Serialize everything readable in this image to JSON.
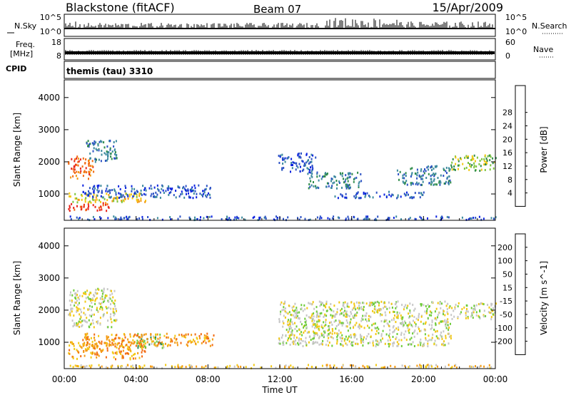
{
  "header": {
    "station": "Blackstone (fitACF)",
    "beam": "Beam 07",
    "date": "15/Apr/2009"
  },
  "top_panels": {
    "nsky_label": "N.Sky",
    "nsearch_label": "N.Search",
    "nsky_ticks": [
      "10^5",
      "10^0"
    ],
    "nsearch_ticks": [
      "10^5",
      "10^0"
    ],
    "freq_label_1": "Freq.",
    "freq_label_2": "[MHz]",
    "freq_ticks": [
      "18",
      "8"
    ],
    "nave_label": "Nave",
    "nave_ticks": [
      "60",
      "0"
    ],
    "cpid_label": "CPID",
    "cpid_value": "themis (tau) 3310"
  },
  "chart_data": [
    {
      "type": "heatmap",
      "title": "",
      "xlabel": "Time UT",
      "ylabel": "Slant Range [km]",
      "x_ticks": [
        "00:00",
        "04:00",
        "08:00",
        "12:00",
        "16:00",
        "20:00",
        "00:00"
      ],
      "y_ticks": [
        "1000",
        "2000",
        "3000",
        "4000"
      ],
      "xlim_hours": [
        0,
        24
      ],
      "ylim_km": [
        180,
        4550
      ],
      "colorbar": {
        "label": "Power [dB]",
        "ticks": [
          "4",
          "8",
          "12",
          "16",
          "20",
          "24",
          "28"
        ],
        "colors": [
          "#0b22e0",
          "#2c52c4",
          "#3c8a9e",
          "#2e8c4a",
          "#7cc43a",
          "#f2c812",
          "#f49a12",
          "#f26a12",
          "#e8241a"
        ]
      },
      "regions": [
        {
          "t0": 0.2,
          "t1": 1.6,
          "r0": 1500,
          "r1": 2200,
          "level": 7
        },
        {
          "t0": 1.2,
          "t1": 2.9,
          "r0": 2000,
          "r1": 2700,
          "level": 2
        },
        {
          "t0": 0.2,
          "t1": 2.5,
          "r0": 500,
          "r1": 750,
          "level": 8
        },
        {
          "t0": 0.2,
          "t1": 4.5,
          "r0": 750,
          "r1": 1050,
          "level": 5
        },
        {
          "t0": 1.0,
          "t1": 8.3,
          "r0": 900,
          "r1": 1300,
          "level": 1
        },
        {
          "t0": 0.2,
          "t1": 24.0,
          "r0": 220,
          "r1": 330,
          "level": 1
        },
        {
          "t0": 11.9,
          "t1": 14.0,
          "r0": 1700,
          "r1": 2300,
          "level": 1
        },
        {
          "t0": 13.5,
          "t1": 16.5,
          "r0": 1200,
          "r1": 1700,
          "level": 2
        },
        {
          "t0": 15.0,
          "t1": 20.0,
          "r0": 900,
          "r1": 1100,
          "level": 1
        },
        {
          "t0": 18.5,
          "t1": 21.5,
          "r0": 1300,
          "r1": 1900,
          "level": 2
        },
        {
          "t0": 21.5,
          "t1": 24.0,
          "r0": 1750,
          "r1": 2250,
          "level": 4
        }
      ]
    },
    {
      "type": "heatmap",
      "title": "",
      "xlabel": "Time UT",
      "ylabel": "Slant Range [km]",
      "x_ticks": [
        "00:00",
        "04:00",
        "08:00",
        "12:00",
        "16:00",
        "20:00",
        "00:00"
      ],
      "y_ticks": [
        "1000",
        "2000",
        "3000",
        "4000"
      ],
      "xlim_hours": [
        0,
        24
      ],
      "ylim_km": [
        180,
        4550
      ],
      "colorbar": {
        "label": "Velocity [m s^-1]",
        "ticks": [
          "200",
          "100",
          "50",
          "15",
          "-15",
          "-50",
          "-100",
          "-200"
        ],
        "colors": [
          "#1c3ad0",
          "#2a62b8",
          "#2e8a56",
          "#6ecc3a",
          "#c6c6c6",
          "#f2c812",
          "#f49a12",
          "#f26a12",
          "#e8241a"
        ]
      },
      "regions": [
        {
          "t0": 0.2,
          "t1": 2.9,
          "r0": 1500,
          "r1": 2700,
          "level": 4
        },
        {
          "t0": 0.2,
          "t1": 4.5,
          "r0": 500,
          "r1": 1050,
          "level": 6
        },
        {
          "t0": 4.0,
          "t1": 5.5,
          "r0": 850,
          "r1": 1300,
          "level": 3
        },
        {
          "t0": 1.0,
          "t1": 8.3,
          "r0": 900,
          "r1": 1300,
          "level": 6
        },
        {
          "t0": 0.2,
          "t1": 24.0,
          "r0": 220,
          "r1": 330,
          "level": 5
        },
        {
          "t0": 11.9,
          "t1": 21.5,
          "r0": 900,
          "r1": 2300,
          "level": 4
        },
        {
          "t0": 21.5,
          "t1": 24.0,
          "r0": 1750,
          "r1": 2250,
          "level": 4
        }
      ]
    }
  ]
}
